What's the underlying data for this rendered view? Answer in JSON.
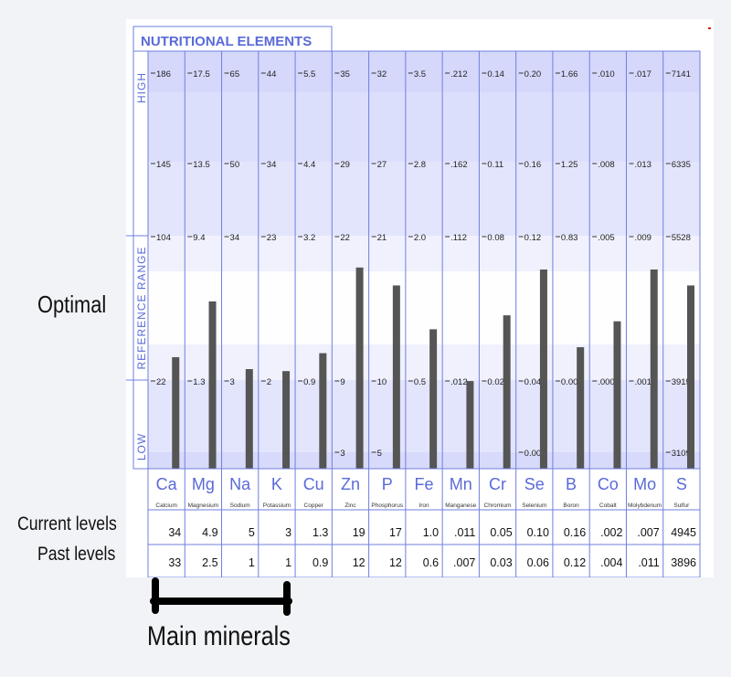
{
  "annotations": {
    "optimal": "Optimal",
    "current_levels": "Current levels",
    "past_levels": "Past levels",
    "main_minerals": "Main minerals"
  },
  "chart_data": {
    "type": "bar",
    "title": "NUTRITIONAL ELEMENTS",
    "zone_labels": {
      "high": "HIGH",
      "reference": "REFERENCE RANGE",
      "low": "LOW"
    },
    "grid": true,
    "legend": "none",
    "elements": [
      {
        "symbol": "Ca",
        "name": "Calcium",
        "ticks": [
          "186",
          "145",
          "104",
          "22"
        ],
        "low_extra": "",
        "current": "34",
        "past": "33",
        "level": 0.56
      },
      {
        "symbol": "Mg",
        "name": "Magnesium",
        "ticks": [
          "17.5",
          "13.5",
          "9.4",
          "1.3"
        ],
        "low_extra": "",
        "current": "4.9",
        "past": "2.5",
        "level": 0.84
      },
      {
        "symbol": "Na",
        "name": "Sodium",
        "ticks": [
          "65",
          "50",
          "34",
          "3"
        ],
        "low_extra": "",
        "current": "5",
        "past": "1",
        "level": 0.5
      },
      {
        "symbol": "K",
        "name": "Potassium",
        "ticks": [
          "44",
          "34",
          "23",
          "2"
        ],
        "low_extra": "",
        "current": "3",
        "past": "1",
        "level": 0.49
      },
      {
        "symbol": "Cu",
        "name": "Copper",
        "ticks": [
          "5.5",
          "4.4",
          "3.2",
          "0.9"
        ],
        "low_extra": "",
        "current": "1.3",
        "past": "0.9",
        "level": 0.58
      },
      {
        "symbol": "Zn",
        "name": "Zinc",
        "ticks": [
          "35",
          "29",
          "22",
          "9"
        ],
        "low_extra": "3",
        "current": "19",
        "past": "12",
        "level": 1.01
      },
      {
        "symbol": "P",
        "name": "Phosphorus",
        "ticks": [
          "32",
          "27",
          "21",
          "10"
        ],
        "low_extra": "5",
        "current": "17",
        "past": "12",
        "level": 0.92
      },
      {
        "symbol": "Fe",
        "name": "Iron",
        "ticks": [
          "3.5",
          "2.8",
          "2.0",
          "0.5"
        ],
        "low_extra": "",
        "current": "1.0",
        "past": "0.6",
        "level": 0.7
      },
      {
        "symbol": "Mn",
        "name": "Manganese",
        "ticks": [
          ".212",
          ".162",
          ".112",
          ".012"
        ],
        "low_extra": "",
        "current": ".011",
        "past": ".007",
        "level": 0.44
      },
      {
        "symbol": "Cr",
        "name": "Chromium",
        "ticks": [
          "0.14",
          "0.11",
          "0.08",
          "0.02"
        ],
        "low_extra": "",
        "current": "0.05",
        "past": "0.03",
        "level": 0.77
      },
      {
        "symbol": "Se",
        "name": "Selenium",
        "ticks": [
          "0.20",
          "0.16",
          "0.12",
          "0.04"
        ],
        "low_extra": "0.00",
        "current": "0.10",
        "past": "0.06",
        "level": 1.0
      },
      {
        "symbol": "B",
        "name": "Boron",
        "ticks": [
          "1.66",
          "1.25",
          "0.83",
          "0.00"
        ],
        "low_extra": "",
        "current": "0.16",
        "past": "0.12",
        "level": 0.61
      },
      {
        "symbol": "Co",
        "name": "Cobalt",
        "ticks": [
          ".010",
          ".008",
          ".005",
          ".000"
        ],
        "low_extra": "",
        "current": ".002",
        "past": ".004",
        "level": 0.74
      },
      {
        "symbol": "Mo",
        "name": "Molybdenum",
        "ticks": [
          ".017",
          ".013",
          ".009",
          ".001"
        ],
        "low_extra": "",
        "current": ".007",
        "past": ".011",
        "level": 1.0
      },
      {
        "symbol": "S",
        "name": "Sulfur",
        "ticks": [
          "7141",
          "6335",
          "5528",
          "3915"
        ],
        "low_extra": "3109",
        "current": "4945",
        "past": "3896",
        "level": 0.92
      }
    ]
  }
}
